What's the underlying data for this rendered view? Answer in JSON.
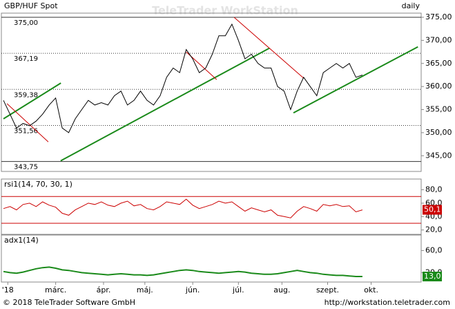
{
  "header": {
    "title": "GBP/HUF Spot",
    "period": "daily",
    "watermark": "TeleTrader WorkStation"
  },
  "footer": {
    "copyright": "© 2018 TeleTrader Software GmbH",
    "url": "http://workstation.teletrader.com"
  },
  "chart_data": [
    {
      "type": "line",
      "xlim": [
        0,
        192
      ],
      "xticks": [
        {
          "value": 2,
          "label": "'18"
        },
        {
          "value": 24,
          "label": "márc."
        },
        {
          "value": 46,
          "label": "ápr."
        },
        {
          "value": 65,
          "label": "máj."
        },
        {
          "value": 87,
          "label": "jún."
        },
        {
          "value": 108,
          "label": "júl."
        },
        {
          "value": 128,
          "label": "aug."
        },
        {
          "value": 149,
          "label": "szept."
        },
        {
          "value": 169,
          "label": "okt."
        }
      ],
      "x": [
        0,
        3,
        6,
        9,
        12,
        15,
        18,
        21,
        24,
        27,
        30,
        33,
        36,
        39,
        42,
        45,
        48,
        51,
        54,
        57,
        60,
        63,
        66,
        69,
        72,
        75,
        78,
        81,
        84,
        87,
        90,
        93,
        96,
        99,
        102,
        105,
        108,
        111,
        114,
        117,
        120,
        123,
        126,
        129,
        132,
        135,
        138,
        141,
        144,
        147,
        150,
        153,
        156,
        159,
        162,
        165
      ],
      "ylim": [
        341.6,
        375.9
      ],
      "yticks": [
        {
          "value": 345,
          "label": "345,00"
        },
        {
          "value": 350,
          "label": "350,00"
        },
        {
          "value": 355,
          "label": "355,00"
        },
        {
          "value": 360,
          "label": "360,00"
        },
        {
          "value": 365,
          "label": "365,00"
        },
        {
          "value": 370,
          "label": "370,00"
        },
        {
          "value": 375,
          "label": "375,00"
        }
      ],
      "series": [
        {
          "name": "GBP/HUF Spot",
          "color": "#000000",
          "values": [
            357,
            354,
            351,
            352,
            351.5,
            352.5,
            354,
            356,
            357.5,
            351,
            350,
            353,
            355,
            357,
            356,
            356.5,
            356,
            358,
            359,
            356,
            357,
            359,
            357,
            356,
            358,
            362,
            364,
            363,
            368,
            366,
            363,
            364,
            367,
            371,
            371,
            373.5,
            370,
            366,
            367,
            365,
            364,
            364,
            360,
            359,
            355,
            359,
            362,
            360,
            358,
            363,
            364,
            365,
            364,
            365,
            362,
            362.5
          ]
        }
      ],
      "levels": [
        {
          "value": 375,
          "label": "375,00",
          "style": "solid"
        },
        {
          "value": 367.19,
          "label": "367,19",
          "style": "dotted"
        },
        {
          "value": 359.38,
          "label": "359,38",
          "style": "dotted"
        },
        {
          "value": 351.56,
          "label": "351,56",
          "style": "dotted"
        },
        {
          "value": 343.75,
          "label": "343,75",
          "style": "solid"
        }
      ],
      "trendlines": [
        {
          "color": "#1a8a1a",
          "x": [
            0,
            26.4
          ],
          "y": [
            353.0,
            360.75
          ]
        },
        {
          "color": "#1a8a1a",
          "x": [
            26.3,
            122.2
          ],
          "y": [
            343.9,
            368.3
          ]
        },
        {
          "color": "#1a8a1a",
          "x": [
            133.3,
            190.5
          ],
          "y": [
            354.3,
            368.6
          ]
        },
        {
          "color": "#cc0000",
          "x": [
            1.6,
            20.6
          ],
          "y": [
            356.3,
            348
          ]
        },
        {
          "color": "#cc0000",
          "x": [
            84,
            98
          ],
          "y": [
            367.5,
            361.5
          ]
        },
        {
          "color": "#cc0000",
          "x": [
            106,
            138
          ],
          "y": [
            375,
            361.8
          ]
        }
      ]
    },
    {
      "type": "line",
      "title": "rsi1(14, 70, 30, 1)",
      "ylim": [
        13.5,
        96
      ],
      "yticks": [
        {
          "value": 20,
          "label": "20,0"
        },
        {
          "value": 40,
          "label": "40,0"
        },
        {
          "value": 60,
          "label": "60,0"
        },
        {
          "value": 80,
          "label": "80,0"
        }
      ],
      "levels": [
        {
          "value": 70
        },
        {
          "value": 30
        }
      ],
      "series": [
        {
          "name": "rsi1",
          "color": "#cc0000",
          "values": [
            52,
            55,
            50,
            58,
            60,
            55,
            62,
            57,
            54,
            45,
            42,
            50,
            55,
            60,
            58,
            62,
            57,
            55,
            60,
            63,
            56,
            58,
            52,
            50,
            55,
            62,
            60,
            58,
            66,
            57,
            52,
            55,
            58,
            63,
            60,
            62,
            55,
            48,
            53,
            50,
            47,
            50,
            42,
            40,
            38,
            48,
            55,
            52,
            48,
            58,
            56,
            58,
            55,
            56,
            47,
            50
          ]
        }
      ],
      "last_value": 50.1,
      "last_label": "50,1"
    },
    {
      "type": "line",
      "title": "adx1(14)",
      "ylim": [
        3,
        88
      ],
      "yticks": [
        {
          "value": 20,
          "label": "20,0"
        },
        {
          "value": 60,
          "label": "60,0"
        }
      ],
      "series": [
        {
          "name": "adx1",
          "color": "#1a8a1a",
          "values": [
            22,
            20,
            19,
            21,
            24,
            27,
            29,
            30,
            28,
            25,
            24,
            22,
            20,
            19,
            18,
            17,
            16,
            17,
            18,
            17,
            16,
            16,
            15,
            16,
            18,
            20,
            22,
            24,
            25,
            24,
            22,
            21,
            20,
            19,
            20,
            21,
            22,
            21,
            19,
            18,
            17,
            17,
            18,
            20,
            22,
            24,
            22,
            20,
            19,
            17,
            16,
            15,
            15,
            14,
            13,
            13
          ]
        }
      ],
      "last_value": 13.0,
      "last_label": "13,0"
    }
  ]
}
